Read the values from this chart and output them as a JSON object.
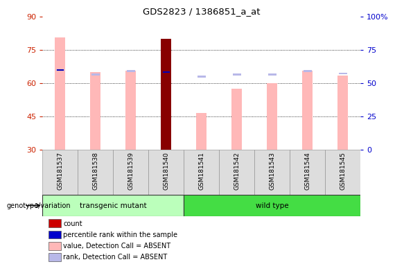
{
  "title": "GDS2823 / 1386851_a_at",
  "samples": [
    "GSM181537",
    "GSM181538",
    "GSM181539",
    "GSM181540",
    "GSM181541",
    "GSM181542",
    "GSM181543",
    "GSM181544",
    "GSM181545"
  ],
  "value_absent": [
    80.5,
    65.0,
    65.5,
    80.0,
    46.5,
    57.5,
    60.0,
    65.5,
    63.5
  ],
  "rank_absent": [
    65.5,
    63.5,
    65.0,
    64.5,
    62.5,
    63.5,
    63.5,
    65.0,
    64.0
  ],
  "count_special_idx": 3,
  "percentile_rank_special_idx": [
    0,
    3
  ],
  "ylim_left": [
    30,
    90
  ],
  "ylim_right": [
    0,
    100
  ],
  "yticks_left": [
    30,
    45,
    60,
    75,
    90
  ],
  "yticks_right": [
    0,
    25,
    50,
    75,
    100
  ],
  "ytick_right_labels": [
    "0",
    "25",
    "50",
    "75",
    "100%"
  ],
  "group1_label": "transgenic mutant",
  "group2_label": "wild type",
  "group1_indices": [
    0,
    1,
    2,
    3
  ],
  "group2_indices": [
    4,
    5,
    6,
    7,
    8
  ],
  "group1_color": "#bbffbb",
  "group2_color": "#44dd44",
  "bar_pink": "#ffb8b8",
  "bar_lavender": "#b8b8e8",
  "bar_darkred": "#880000",
  "bar_blue": "#0000bb",
  "legend_items": [
    "count",
    "percentile rank within the sample",
    "value, Detection Call = ABSENT",
    "rank, Detection Call = ABSENT"
  ],
  "legend_colors": [
    "#cc0000",
    "#0000cc",
    "#ffb8b8",
    "#b8b8e8"
  ],
  "bar_width": 0.3,
  "genotype_label": "genotype/variation",
  "left_tick_color": "#cc2200",
  "right_tick_color": "#0000cc"
}
